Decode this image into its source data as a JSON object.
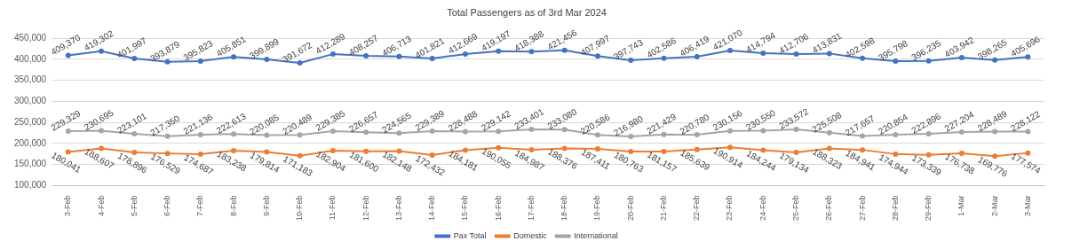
{
  "chart_data": {
    "type": "line",
    "title": "Total Passengers as of 3rd Mar 2024",
    "categories": [
      "3-Feb",
      "4-Feb",
      "5-Feb",
      "6-Feb",
      "7-Feb",
      "8-Feb",
      "9-Feb",
      "10-Feb",
      "11-Feb",
      "12-Feb",
      "13-Feb",
      "14-Feb",
      "15-Feb",
      "16-Feb",
      "17-Feb",
      "18-Feb",
      "19-Feb",
      "20-Feb",
      "21-Feb",
      "22-Feb",
      "23-Feb",
      "24-Feb",
      "25-Feb",
      "26-Feb",
      "27-Feb",
      "28-Feb",
      "29-Feb",
      "1-Mar",
      "2-Mar",
      "3-Mar"
    ],
    "series": [
      {
        "name": "Pax Total",
        "color": "#4472c4",
        "values": [
          409370,
          419302,
          401997,
          393879,
          395823,
          405851,
          399899,
          391672,
          412289,
          408257,
          406713,
          401821,
          412669,
          419197,
          418388,
          421456,
          407997,
          397743,
          402586,
          406419,
          421070,
          414794,
          412706,
          413831,
          402598,
          395798,
          396235,
          403942,
          398265,
          405696
        ],
        "value_labels": [
          "409,370",
          "419,302",
          "401,997",
          "393,879",
          "395,823",
          "405,851",
          "399,899",
          "391,672",
          "412,289",
          "408,257",
          "406,713",
          "401,821",
          "412,669",
          "419,197",
          "418,388",
          "421,456",
          "407,997",
          "397,743",
          "402,586",
          "406,419",
          "421,070",
          "414,794",
          "412,706",
          "413,831",
          "402,598",
          "395,798",
          "396,235",
          "403,942",
          "398,265",
          "405,696"
        ]
      },
      {
        "name": "Domestic",
        "color": "#ed7d31",
        "values": [
          180041,
          188607,
          178896,
          176529,
          174687,
          183238,
          179814,
          171183,
          182904,
          181600,
          182148,
          172432,
          184181,
          190055,
          184987,
          188376,
          187411,
          180763,
          181157,
          185639,
          190914,
          184244,
          179134,
          188323,
          184941,
          174944,
          173339,
          176738,
          169776,
          177574
        ],
        "value_labels": [
          "180,041",
          "188,607",
          "178,896",
          "176,529",
          "174,687",
          "183,238",
          "179,814",
          "171,183",
          "182,904",
          "181,600",
          "182,148",
          "172,432",
          "184,181",
          "190,055",
          "184,987",
          "188,376",
          "187,411",
          "180,763",
          "181,157",
          "185,639",
          "190,914",
          "184,244",
          "179,134",
          "188,323",
          "184,941",
          "174,944",
          "173,339",
          "176,738",
          "169,776",
          "177,574"
        ]
      },
      {
        "name": "International",
        "color": "#a5a5a5",
        "values": [
          229329,
          230695,
          223101,
          217350,
          221136,
          222613,
          220085,
          220489,
          229385,
          226657,
          224565,
          229389,
          228488,
          229142,
          233401,
          233080,
          220586,
          216980,
          221429,
          220780,
          230156,
          230550,
          233572,
          225508,
          217657,
          220854,
          222896,
          227204,
          228489,
          228122
        ],
        "value_labels": [
          "229,329",
          "230,695",
          "223,101",
          "217,350",
          "221,136",
          "222,613",
          "220,085",
          "220,489",
          "229,385",
          "226,657",
          "224,565",
          "229,389",
          "228,488",
          "229,142",
          "233,401",
          "233,080",
          "220,586",
          "216,980",
          "221,429",
          "220,780",
          "230,156",
          "230,550",
          "233,572",
          "225,508",
          "217,657",
          "220,854",
          "222,896",
          "227,204",
          "228,489",
          "228,122"
        ]
      }
    ],
    "ylim": [
      100000,
      450000
    ],
    "yticks": [
      {
        "value": 100000,
        "label": "100,000"
      },
      {
        "value": 150000,
        "label": "150,000"
      },
      {
        "value": 200000,
        "label": "200,000"
      },
      {
        "value": 250000,
        "label": "250,000"
      },
      {
        "value": 300000,
        "label": "300,000"
      },
      {
        "value": 350000,
        "label": "350,000"
      },
      {
        "value": 400000,
        "label": "400,000"
      },
      {
        "value": 450000,
        "label": "450,000"
      }
    ],
    "grid": "y",
    "legend": "bottom",
    "marker": "circle",
    "line_style": "solid"
  }
}
